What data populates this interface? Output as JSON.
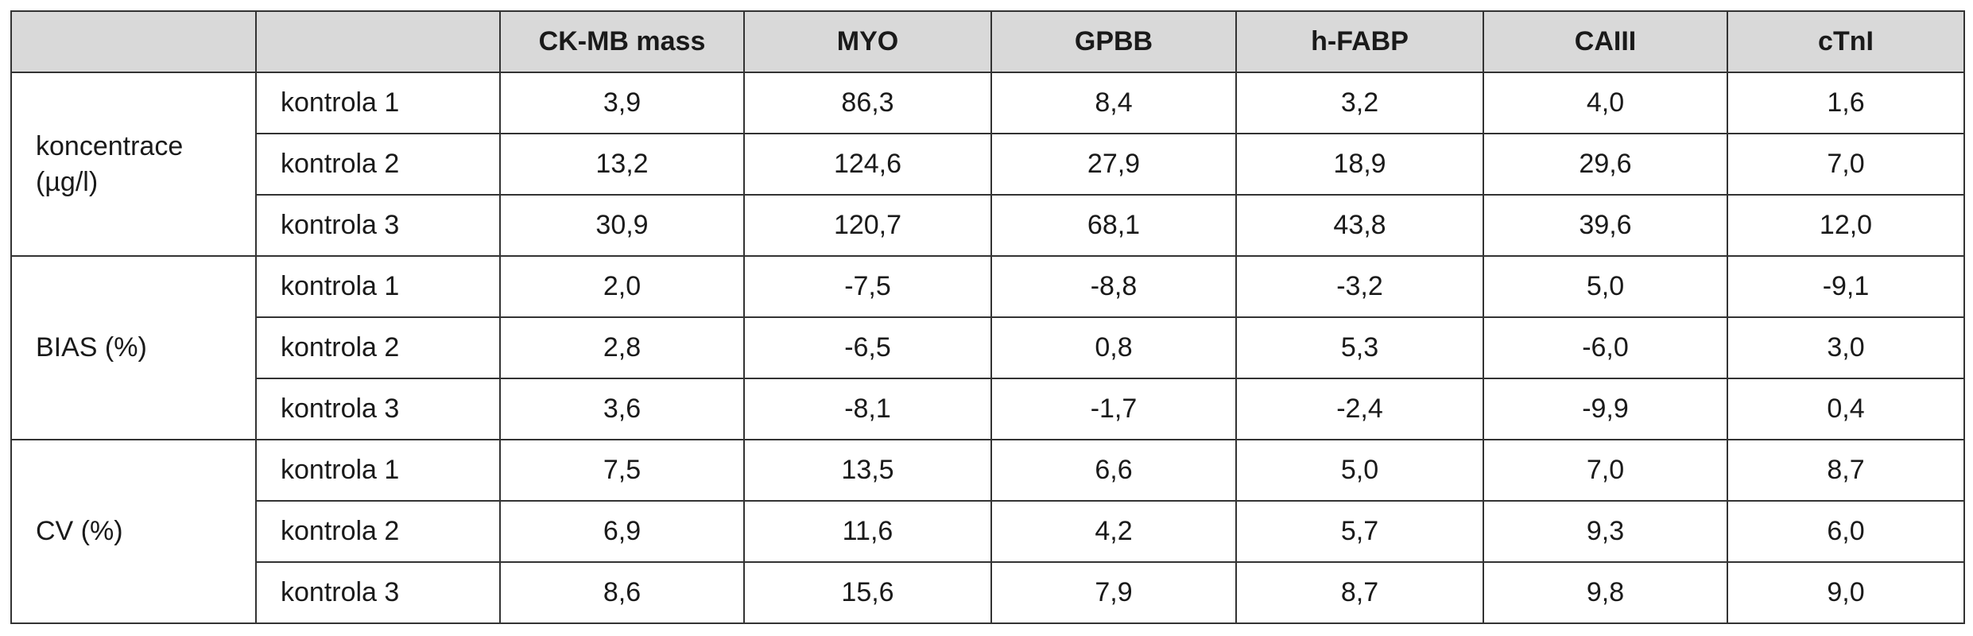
{
  "table": {
    "columns": [
      "CK-MB mass",
      "MYO",
      "GPBB",
      "h-FABP",
      "CAIII",
      "cTnI"
    ],
    "groups": [
      {
        "label_lines": [
          "koncentrace",
          "(µg/l)"
        ],
        "rows": [
          {
            "label": "kontrola 1",
            "values": [
              "3,9",
              "86,3",
              "8,4",
              "3,2",
              "4,0",
              "1,6"
            ]
          },
          {
            "label": "kontrola 2",
            "values": [
              "13,2",
              "124,6",
              "27,9",
              "18,9",
              "29,6",
              "7,0"
            ]
          },
          {
            "label": "kontrola 3",
            "values": [
              "30,9",
              "120,7",
              "68,1",
              "43,8",
              "39,6",
              "12,0"
            ]
          }
        ]
      },
      {
        "label_lines": [
          "BIAS (%)"
        ],
        "rows": [
          {
            "label": "kontrola 1",
            "values": [
              "2,0",
              "-7,5",
              "-8,8",
              "-3,2",
              "5,0",
              "-9,1"
            ]
          },
          {
            "label": "kontrola 2",
            "values": [
              "2,8",
              "-6,5",
              "0,8",
              "5,3",
              "-6,0",
              "3,0"
            ]
          },
          {
            "label": "kontrola 3",
            "values": [
              "3,6",
              "-8,1",
              "-1,7",
              "-2,4",
              "-9,9",
              "0,4"
            ]
          }
        ]
      },
      {
        "label_lines": [
          "CV (%)"
        ],
        "rows": [
          {
            "label": "kontrola 1",
            "values": [
              "7,5",
              "13,5",
              "6,6",
              "5,0",
              "7,0",
              "8,7"
            ]
          },
          {
            "label": "kontrola 2",
            "values": [
              "6,9",
              "11,6",
              "4,2",
              "5,7",
              "9,3",
              "6,0"
            ]
          },
          {
            "label": "kontrola 3",
            "values": [
              "8,6",
              "15,6",
              "7,9",
              "8,7",
              "9,8",
              "9,0"
            ]
          }
        ]
      }
    ]
  }
}
